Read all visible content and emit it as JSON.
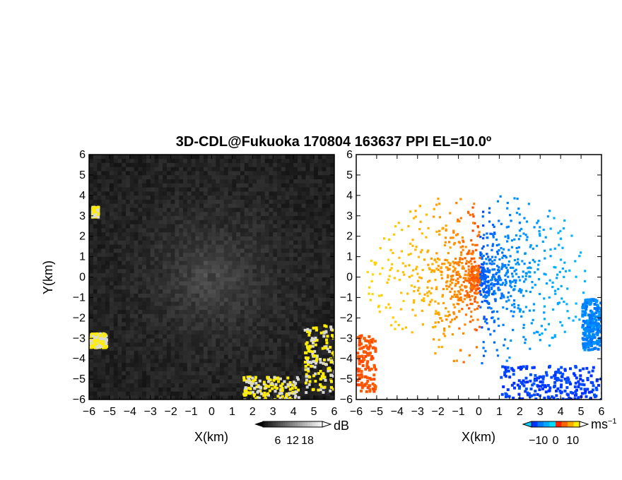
{
  "title": "3D-CDL@Fukuoka 170804 163637 PPI EL=10.0º",
  "chart_data": [
    {
      "type": "heatmap",
      "panel": "left",
      "quantity": "reflectivity",
      "xlabel": "X(km)",
      "ylabel": "Y(km)",
      "xlim": [
        -6,
        6
      ],
      "ylim": [
        -6,
        6
      ],
      "xticks": [
        "−6",
        "−5",
        "−4",
        "−3",
        "−2",
        "−1",
        "0",
        "1",
        "2",
        "3",
        "4",
        "5",
        "6"
      ],
      "yticks": [
        "6",
        "5",
        "4",
        "3",
        "2",
        "1",
        "0",
        "−1",
        "−2",
        "−3",
        "−4",
        "−5",
        "−6"
      ],
      "colorbar": {
        "unit": "dB",
        "ticks": [
          "6",
          "12",
          "18"
        ],
        "tick_values": [
          6,
          12,
          18
        ],
        "range": [
          0,
          24
        ]
      },
      "colors": {
        "background_low": "#1c1c1c",
        "center_high": "#6e6e6e",
        "strong": "#ffee00",
        "edge": "#d9d9d9"
      },
      "features": [
        {
          "name": "clutter-sw",
          "x": [
            -6.0,
            -5.2
          ],
          "y": [
            -3.4,
            -2.7
          ]
        },
        {
          "name": "clutter-nw",
          "x": [
            -5.9,
            -5.6
          ],
          "y": [
            3.0,
            3.5
          ]
        },
        {
          "name": "clutter-south",
          "x": [
            1.5,
            4.2
          ],
          "y": [
            -6.0,
            -4.8
          ]
        },
        {
          "name": "clutter-se",
          "x": [
            4.5,
            6.0
          ],
          "y": [
            -5.6,
            -2.3
          ]
        }
      ]
    },
    {
      "type": "heatmap",
      "panel": "right",
      "quantity": "doppler-velocity",
      "xlabel": "X(km)",
      "ylabel": "",
      "xlim": [
        -6,
        6
      ],
      "ylim": [
        -6,
        6
      ],
      "xticks": [
        "−6",
        "−5",
        "−4",
        "−3",
        "−2",
        "−1",
        "0",
        "1",
        "2",
        "3",
        "4",
        "5",
        "6"
      ],
      "yticks": [
        "6",
        "5",
        "4",
        "3",
        "2",
        "1",
        "0",
        "−1",
        "−2",
        "−3",
        "−4",
        "−5",
        "−6"
      ],
      "colorbar": {
        "unit": "ms",
        "unit_exponent": "−1",
        "ticks": [
          "−10",
          "0",
          "10"
        ],
        "tick_values": [
          -10,
          0,
          10
        ],
        "range": [
          -14,
          14
        ]
      },
      "colors": {
        "toward": "#0044ff",
        "toward_weak": "#00ccff",
        "away_weak": "#ffee00",
        "away": "#ff2200"
      },
      "features": [
        {
          "name": "negative-lobe",
          "x": [
            0,
            4.0
          ],
          "y": [
            -3.2,
            3.4
          ],
          "value": -8
        },
        {
          "name": "positive-lobe",
          "x": [
            -6.0,
            0
          ],
          "y": [
            -3.2,
            5.2
          ],
          "value": 6
        },
        {
          "name": "south-echo",
          "x": [
            1.0,
            6.0
          ],
          "y": [
            -6.0,
            -4.3
          ],
          "value": -12
        },
        {
          "name": "se-echo",
          "x": [
            5.0,
            6.0
          ],
          "y": [
            -3.5,
            -1.0
          ],
          "value": -6
        }
      ]
    }
  ]
}
